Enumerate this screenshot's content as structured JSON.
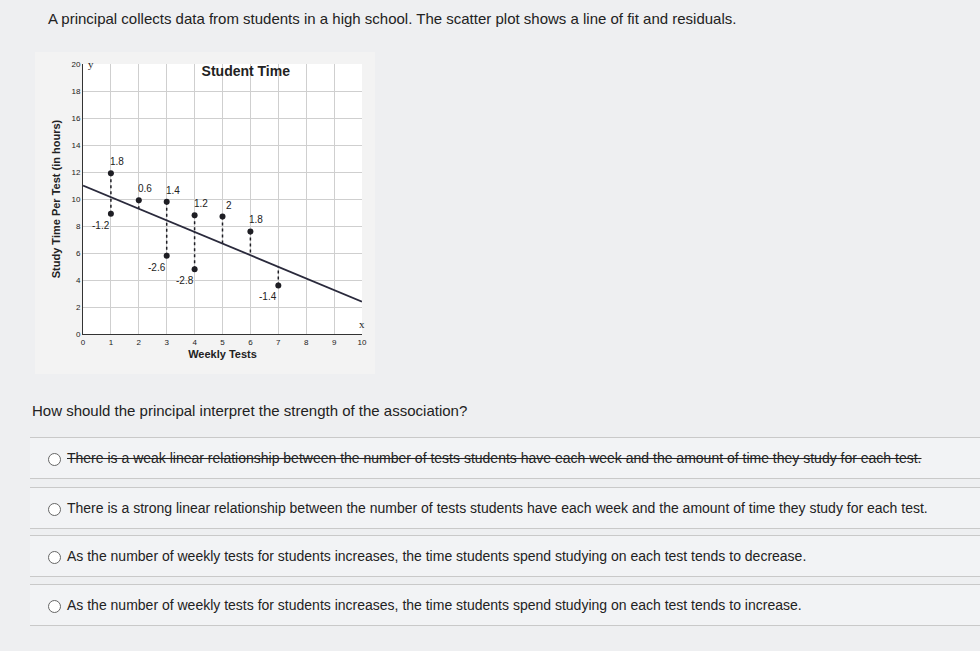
{
  "intro": "A principal collects data from students in a high school. The scatter plot shows a line of fit and residuals.",
  "chart_data": {
    "type": "scatter",
    "title": "Student Time",
    "x_label": "Weekly Tests",
    "y_label": "Study Time Per Test (in hours)",
    "annotations": [
      "y",
      "x"
    ],
    "xlim": [
      0,
      10
    ],
    "ylim": [
      0,
      20
    ],
    "xticks": [
      0,
      1,
      2,
      3,
      4,
      5,
      6,
      7,
      8,
      9,
      10
    ],
    "yticks": [
      0,
      2,
      4,
      6,
      8,
      10,
      12,
      14,
      16,
      18,
      20
    ],
    "grid": true,
    "series": [
      {
        "type": "scatter",
        "color": "#1e1e24",
        "marker": "circle",
        "x": [
          1,
          1,
          2,
          3,
          3,
          4,
          4,
          5,
          6,
          7
        ],
        "values": [
          11.9,
          8.9,
          9.9,
          9.8,
          5.8,
          8.8,
          4.8,
          8.7,
          7.6,
          3.6
        ],
        "residuals": [
          1.8,
          -1.2,
          0.6,
          1.4,
          -2.6,
          1.2,
          -2.8,
          2,
          1.8,
          -1.4
        ]
      },
      {
        "type": "line",
        "color": "#2a2a3c",
        "line_style": "solid",
        "x": [
          0,
          10
        ],
        "values": [
          11,
          2.4
        ]
      }
    ]
  },
  "question": "How should the principal interpret the strength of the association?",
  "options": [
    {
      "text": "There is a weak linear relationship between the number of tests students have each week and the amount of time they study for each test.",
      "crossed_out": true
    },
    {
      "text": "There is a strong linear relationship between the number of tests students have each week and the amount of time they study for each test.",
      "crossed_out": false
    },
    {
      "text": "As the number of weekly tests for students increases, the time students spend studying on each test tends to decrease.",
      "crossed_out": false
    },
    {
      "text": "As the number of weekly tests for students increases, the time students spend studying on each test tends to increase.",
      "crossed_out": false
    }
  ]
}
